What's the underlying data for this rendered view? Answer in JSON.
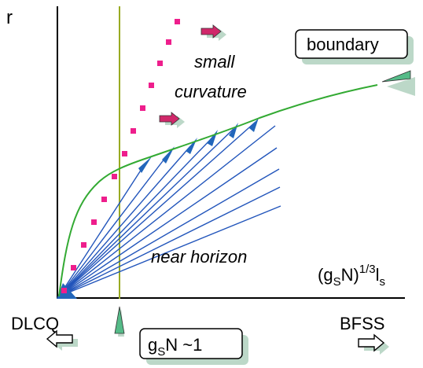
{
  "axes": {
    "y_label": "r",
    "x_label": {
      "base": "(g",
      "sub1": "S",
      "mid": "N)",
      "sup": "1/3",
      "tail": "l",
      "sub2": "s"
    }
  },
  "regions": {
    "small_curvature_line1": "small",
    "small_curvature_line2": "curvature",
    "near_horizon": "near horizon"
  },
  "boxes": {
    "boundary": "boundary",
    "coupling": {
      "base": "g",
      "sub": "S",
      "tail": "N ~1"
    }
  },
  "limits": {
    "left": "DLCQ",
    "right": "BFSS"
  },
  "icons": {
    "left_arrow": "hollow-left-arrow-icon",
    "right_arrow": "hollow-right-arrow-icon",
    "tick_marker": "green-triangle-marker-icon",
    "flow_arrow": "magenta-arrow-icon"
  },
  "colors": {
    "boundary_curve": "#33aa33",
    "dotted_line": "#ee1e8c",
    "rays": "#2255bb",
    "vertical_line": "#99aa22",
    "shadow": "#bcd8c8",
    "marker": "#55bb88"
  }
}
